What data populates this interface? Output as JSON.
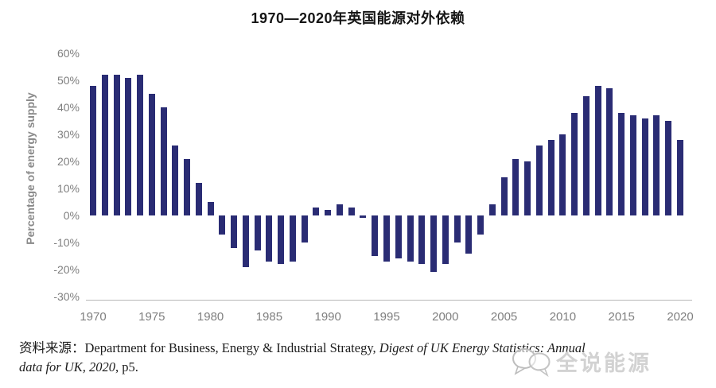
{
  "title": "1970—2020年英国能源对外依赖",
  "chart_data": {
    "type": "bar",
    "title": "1970—2020年英国能源对外依赖",
    "xlabel": "",
    "ylabel": "Percentage of energy supply",
    "ylim": [
      -30,
      60
    ],
    "ytick_step_percent": 10,
    "grid": false,
    "legend": null,
    "bar_color": "#2a2c74",
    "x": [
      1970,
      1971,
      1972,
      1973,
      1974,
      1975,
      1976,
      1977,
      1978,
      1979,
      1980,
      1981,
      1982,
      1983,
      1984,
      1985,
      1986,
      1987,
      1988,
      1989,
      1990,
      1991,
      1992,
      1993,
      1994,
      1995,
      1996,
      1997,
      1998,
      1999,
      2000,
      2001,
      2002,
      2003,
      2004,
      2005,
      2006,
      2007,
      2008,
      2009,
      2010,
      2011,
      2012,
      2013,
      2014,
      2015,
      2016,
      2017,
      2018,
      2019,
      2020
    ],
    "values": [
      48,
      52,
      52,
      51,
      52,
      45,
      40,
      26,
      21,
      12,
      5,
      -7,
      -12,
      -19,
      -13,
      -17,
      -18,
      -17,
      -10,
      3,
      2,
      4,
      3,
      -1,
      -15,
      -17,
      -16,
      -17,
      -18,
      -21,
      -18,
      -10,
      -14,
      -7,
      4,
      14,
      21,
      20,
      26,
      28,
      30,
      38,
      44,
      48,
      47,
      38,
      37,
      36,
      37,
      35,
      28
    ]
  },
  "axis": {
    "y_tick_labels": [
      "60%",
      "50%",
      "40%",
      "30%",
      "20%",
      "10%",
      "0%",
      "-10%",
      "-20%",
      "-30%"
    ],
    "x_tick_labels": [
      "1970",
      "1975",
      "1980",
      "1985",
      "1990",
      "1995",
      "2000",
      "2005",
      "2010",
      "2015",
      "2020"
    ]
  },
  "source": {
    "prefix": "资料来源：",
    "regular1": "Department for Business, Energy & Industrial Strategy, ",
    "italic1": "Digest of UK Energy Statistics: Annual",
    "italic2": "data for UK, 2020",
    "suffix": ", p5."
  },
  "watermark": {
    "text": "全说能源"
  },
  "colors": {
    "bar": "#2a2c74",
    "axis_text": "#7f7f7f",
    "axis_line": "#b7b7b7",
    "title_text": "#151515",
    "watermark": "#adadad"
  }
}
